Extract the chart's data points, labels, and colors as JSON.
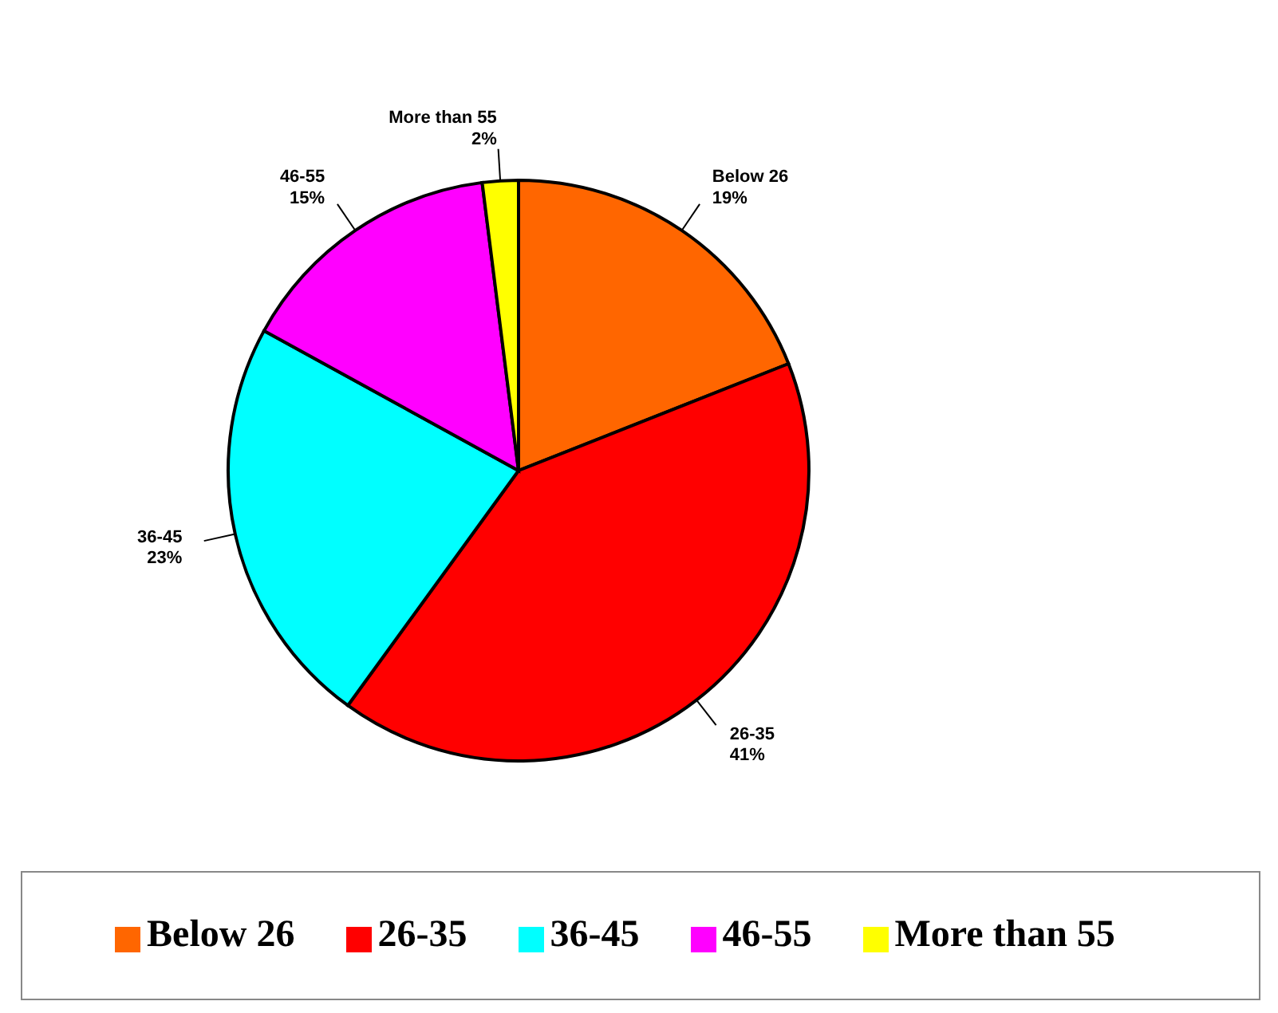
{
  "chart_data": {
    "type": "pie",
    "categories": [
      "Below 26",
      "26-35",
      "36-45",
      "46-55",
      "More than 55"
    ],
    "values": [
      19,
      41,
      23,
      15,
      2
    ],
    "colors": [
      "#ff6600",
      "#ff0000",
      "#00ffff",
      "#ff00ff",
      "#ffff00"
    ],
    "value_labels": [
      "19%",
      "41%",
      "23%",
      "15%",
      "2%"
    ],
    "legend": "bottom"
  }
}
